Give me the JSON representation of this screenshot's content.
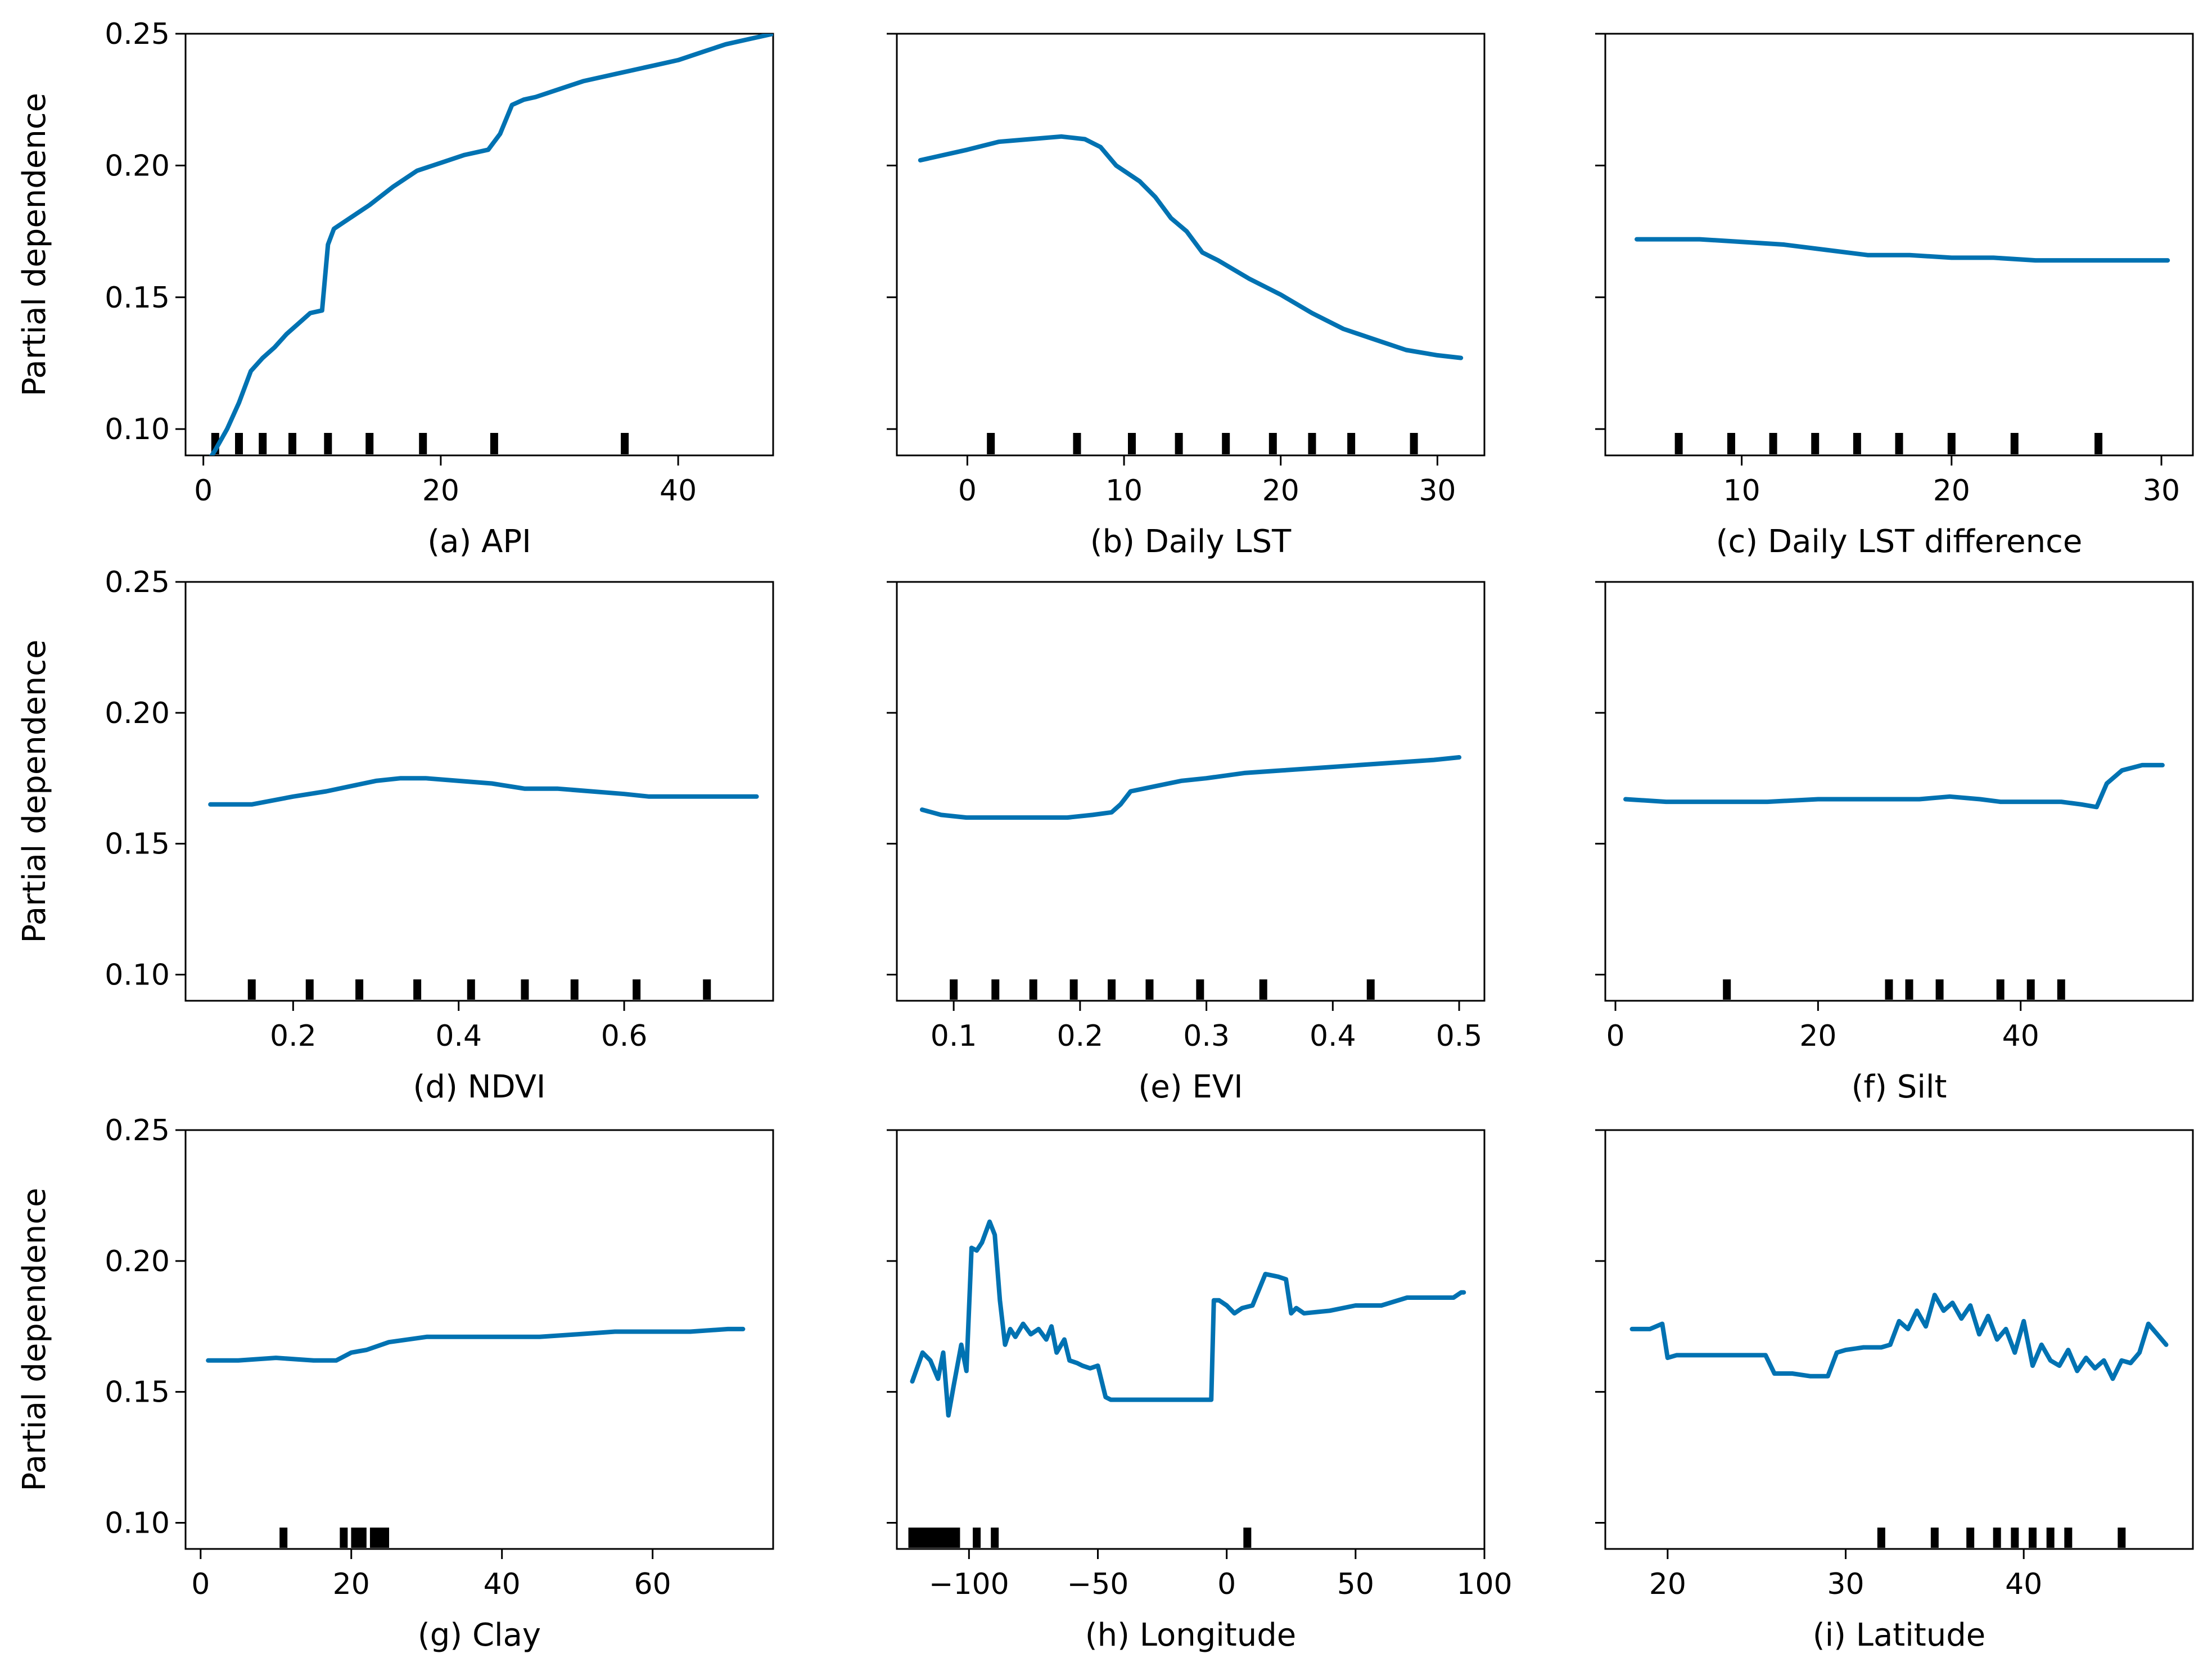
{
  "chart_data": [
    {
      "type": "line",
      "xlabel": "(a) API",
      "ylabel": "Partial dependence",
      "xlim": [
        -1.5,
        48
      ],
      "ylim": [
        0.09,
        0.25
      ],
      "xticks": [
        0,
        20,
        40
      ],
      "yticks": [
        0.1,
        0.15,
        0.2,
        0.25
      ],
      "ytick_labels": [
        "0.10",
        "0.15",
        "0.20",
        "0.25"
      ],
      "show_yticklabels": true,
      "series": [
        {
          "name": "partial dependence",
          "x": [
            0,
            1,
            2,
            3,
            4,
            5,
            6,
            7,
            8,
            9,
            10,
            10.5,
            11,
            12,
            14,
            16,
            18,
            20,
            22,
            24,
            25,
            26,
            27,
            28,
            30,
            32,
            34,
            36,
            38,
            40,
            42,
            44,
            46,
            48
          ],
          "y": [
            0.085,
            0.092,
            0.1,
            0.11,
            0.122,
            0.127,
            0.131,
            0.136,
            0.14,
            0.144,
            0.145,
            0.17,
            0.176,
            0.179,
            0.185,
            0.192,
            0.198,
            0.201,
            0.204,
            0.206,
            0.212,
            0.223,
            0.225,
            0.226,
            0.229,
            0.232,
            0.234,
            0.236,
            0.238,
            0.24,
            0.243,
            0.246,
            0.248,
            0.25
          ]
        }
      ],
      "rug": [
        1,
        3,
        5,
        7.5,
        10.5,
        14,
        18.5,
        24.5,
        35.5
      ]
    },
    {
      "type": "line",
      "xlabel": "(b) Daily LST",
      "ylabel": "",
      "xlim": [
        -4.5,
        33
      ],
      "ylim": [
        0.09,
        0.25
      ],
      "xticks": [
        0,
        10,
        20,
        30
      ],
      "yticks": [
        0.1,
        0.15,
        0.2,
        0.25
      ],
      "ytick_labels": [
        "0.10",
        "0.15",
        "0.20",
        "0.25"
      ],
      "show_yticklabels": false,
      "series": [
        {
          "name": "partial dependence",
          "x": [
            -3,
            0,
            2,
            4,
            6,
            7.5,
            8.5,
            9.5,
            11,
            12,
            13,
            14,
            15,
            16,
            18,
            20,
            22,
            24,
            26,
            28,
            30,
            31.5
          ],
          "y": [
            0.202,
            0.206,
            0.209,
            0.21,
            0.211,
            0.21,
            0.207,
            0.2,
            0.194,
            0.188,
            0.18,
            0.175,
            0.167,
            0.164,
            0.157,
            0.151,
            0.144,
            0.138,
            0.134,
            0.13,
            0.128,
            0.127
          ]
        }
      ],
      "rug": [
        1.5,
        7,
        10.5,
        13.5,
        16.5,
        19.5,
        22,
        24.5,
        28.5
      ]
    },
    {
      "type": "line",
      "xlabel": "(c) Daily LST difference",
      "ylabel": "",
      "xlim": [
        3.5,
        31.5
      ],
      "ylim": [
        0.09,
        0.25
      ],
      "xticks": [
        10,
        20,
        30
      ],
      "yticks": [
        0.1,
        0.15,
        0.2,
        0.25
      ],
      "ytick_labels": [
        "0.10",
        "0.15",
        "0.20",
        "0.25"
      ],
      "show_yticklabels": false,
      "series": [
        {
          "name": "partial dependence",
          "x": [
            5,
            8,
            10,
            12,
            14,
            16,
            18,
            20,
            22,
            24,
            26,
            28,
            30.3
          ],
          "y": [
            0.172,
            0.172,
            0.171,
            0.17,
            0.168,
            0.166,
            0.166,
            0.165,
            0.165,
            0.164,
            0.164,
            0.164,
            0.164
          ]
        }
      ],
      "rug": [
        7,
        9.5,
        11.5,
        13.5,
        15.5,
        17.5,
        20,
        23,
        27
      ]
    },
    {
      "type": "line",
      "xlabel": "(d) NDVI",
      "ylabel": "Partial dependence",
      "xlim": [
        0.07,
        0.78
      ],
      "ylim": [
        0.09,
        0.25
      ],
      "xticks": [
        0.2,
        0.4,
        0.6
      ],
      "yticks": [
        0.1,
        0.15,
        0.2,
        0.25
      ],
      "ytick_labels": [
        "0.10",
        "0.15",
        "0.20",
        "0.25"
      ],
      "show_yticklabels": true,
      "series": [
        {
          "name": "partial dependence",
          "x": [
            0.1,
            0.15,
            0.2,
            0.24,
            0.27,
            0.3,
            0.33,
            0.36,
            0.4,
            0.44,
            0.48,
            0.52,
            0.56,
            0.6,
            0.63,
            0.66,
            0.7,
            0.73,
            0.76
          ],
          "y": [
            0.165,
            0.165,
            0.168,
            0.17,
            0.172,
            0.174,
            0.175,
            0.175,
            0.174,
            0.173,
            0.171,
            0.171,
            0.17,
            0.169,
            0.168,
            0.168,
            0.168,
            0.168,
            0.168
          ]
        }
      ],
      "rug": [
        0.15,
        0.22,
        0.28,
        0.35,
        0.415,
        0.48,
        0.54,
        0.615,
        0.7
      ]
    },
    {
      "type": "line",
      "xlabel": "(e) EVI",
      "ylabel": "",
      "xlim": [
        0.055,
        0.52
      ],
      "ylim": [
        0.09,
        0.25
      ],
      "xticks": [
        0.1,
        0.2,
        0.3,
        0.4,
        0.5
      ],
      "yticks": [
        0.1,
        0.15,
        0.2,
        0.25
      ],
      "ytick_labels": [
        "0.10",
        "0.15",
        "0.20",
        "0.25"
      ],
      "show_yticklabels": false,
      "series": [
        {
          "name": "partial dependence",
          "x": [
            0.075,
            0.09,
            0.11,
            0.13,
            0.15,
            0.17,
            0.19,
            0.21,
            0.225,
            0.232,
            0.24,
            0.26,
            0.28,
            0.3,
            0.33,
            0.36,
            0.39,
            0.42,
            0.45,
            0.48,
            0.5
          ],
          "y": [
            0.163,
            0.161,
            0.16,
            0.16,
            0.16,
            0.16,
            0.16,
            0.161,
            0.162,
            0.165,
            0.17,
            0.172,
            0.174,
            0.175,
            0.177,
            0.178,
            0.179,
            0.18,
            0.181,
            0.182,
            0.183
          ]
        }
      ],
      "rug": [
        0.1,
        0.133,
        0.163,
        0.195,
        0.225,
        0.255,
        0.295,
        0.345,
        0.43
      ]
    },
    {
      "type": "line",
      "xlabel": "(f) Silt",
      "ylabel": "",
      "xlim": [
        -1,
        57
      ],
      "ylim": [
        0.09,
        0.25
      ],
      "xticks": [
        0,
        20,
        40
      ],
      "yticks": [
        0.1,
        0.15,
        0.2,
        0.25
      ],
      "ytick_labels": [
        "0.10",
        "0.15",
        "0.20",
        "0.25"
      ],
      "show_yticklabels": false,
      "series": [
        {
          "name": "partial dependence",
          "x": [
            1,
            5,
            10,
            15,
            20,
            25,
            30,
            33,
            36,
            38,
            40,
            42,
            44,
            46,
            47.5,
            48.5,
            50,
            52,
            54
          ],
          "y": [
            0.167,
            0.166,
            0.166,
            0.166,
            0.167,
            0.167,
            0.167,
            0.168,
            0.167,
            0.166,
            0.166,
            0.166,
            0.166,
            0.165,
            0.164,
            0.173,
            0.178,
            0.18,
            0.18
          ]
        }
      ],
      "rug": [
        11,
        27,
        29,
        32,
        38,
        41,
        44
      ]
    },
    {
      "type": "line",
      "xlabel": "(g) Clay",
      "ylabel": "Partial dependence",
      "xlim": [
        -2,
        76
      ],
      "ylim": [
        0.09,
        0.25
      ],
      "xticks": [
        0,
        20,
        40,
        60
      ],
      "yticks": [
        0.1,
        0.15,
        0.2,
        0.25
      ],
      "ytick_labels": [
        "0.10",
        "0.15",
        "0.20",
        "0.25"
      ],
      "show_yticklabels": true,
      "series": [
        {
          "name": "partial dependence",
          "x": [
            1,
            5,
            10,
            15,
            18,
            20,
            22,
            25,
            30,
            35,
            40,
            45,
            50,
            55,
            60,
            65,
            70,
            72
          ],
          "y": [
            0.162,
            0.162,
            0.163,
            0.162,
            0.162,
            0.165,
            0.166,
            0.169,
            0.171,
            0.171,
            0.171,
            0.171,
            0.172,
            0.173,
            0.173,
            0.173,
            0.174,
            0.174
          ]
        }
      ],
      "rug": [
        11,
        19,
        20.5,
        21.5,
        23,
        23.8,
        24.5
      ]
    },
    {
      "type": "line",
      "xlabel": "(h) Longitude",
      "ylabel": "",
      "xlim": [
        -128,
        100
      ],
      "ylim": [
        0.09,
        0.25
      ],
      "xticks": [
        -100,
        -50,
        0,
        50,
        100
      ],
      "xtick_labels": [
        "−100",
        "−50",
        "0",
        "50",
        "100"
      ],
      "yticks": [
        0.1,
        0.15,
        0.2,
        0.25
      ],
      "ytick_labels": [
        "0.10",
        "0.15",
        "0.20",
        "0.25"
      ],
      "show_yticklabels": false,
      "series": [
        {
          "name": "partial dependence",
          "x": [
            -122,
            -118,
            -115,
            -112,
            -110,
            -108,
            -106,
            -103,
            -101,
            -99,
            -97,
            -95,
            -92,
            -90,
            -88,
            -86,
            -84,
            -82,
            -79,
            -76,
            -73,
            -70,
            -68,
            -66,
            -63,
            -61,
            -58,
            -56,
            -53,
            -50,
            -47,
            -45,
            -40,
            -35,
            -30,
            -25,
            -20,
            -15,
            -10,
            -6,
            -5,
            -3,
            0,
            3,
            6,
            10,
            15,
            20,
            23,
            25,
            27,
            30,
            40,
            50,
            60,
            70,
            80,
            88,
            91,
            92
          ],
          "y": [
            0.154,
            0.165,
            0.162,
            0.155,
            0.165,
            0.141,
            0.152,
            0.168,
            0.158,
            0.205,
            0.204,
            0.207,
            0.215,
            0.21,
            0.185,
            0.168,
            0.174,
            0.171,
            0.176,
            0.172,
            0.174,
            0.17,
            0.175,
            0.165,
            0.17,
            0.162,
            0.161,
            0.16,
            0.159,
            0.16,
            0.148,
            0.147,
            0.147,
            0.147,
            0.147,
            0.147,
            0.147,
            0.147,
            0.147,
            0.147,
            0.185,
            0.185,
            0.183,
            0.18,
            0.182,
            0.183,
            0.195,
            0.194,
            0.193,
            0.18,
            0.182,
            0.18,
            0.181,
            0.183,
            0.183,
            0.186,
            0.186,
            0.186,
            0.188,
            0.188
          ]
        }
      ],
      "rug": [
        -122,
        -120,
        -119,
        -118,
        -117,
        -116,
        -115,
        -114,
        -113,
        -112,
        -111,
        -110,
        -108,
        -107,
        -105,
        -97,
        -90,
        8
      ]
    },
    {
      "type": "line",
      "xlabel": "(i) Latitude",
      "ylabel": "",
      "xlim": [
        16.5,
        49.5
      ],
      "ylim": [
        0.09,
        0.25
      ],
      "xticks": [
        20,
        30,
        40
      ],
      "yticks": [
        0.1,
        0.15,
        0.2,
        0.25
      ],
      "ytick_labels": [
        "0.10",
        "0.15",
        "0.20",
        "0.25"
      ],
      "show_yticklabels": false,
      "series": [
        {
          "name": "partial dependence",
          "x": [
            18,
            19,
            19.7,
            20,
            20.5,
            22,
            24,
            25.5,
            26,
            27,
            28,
            29,
            29.5,
            30,
            31,
            32,
            32.5,
            33,
            33.5,
            34,
            34.5,
            35,
            35.5,
            36,
            36.5,
            37,
            37.5,
            38,
            38.5,
            39,
            39.5,
            40,
            40.5,
            41,
            41.5,
            42,
            42.5,
            43,
            43.5,
            44,
            44.5,
            45,
            45.5,
            46,
            46.5,
            47,
            47.5,
            48
          ],
          "y": [
            0.174,
            0.174,
            0.176,
            0.163,
            0.164,
            0.164,
            0.164,
            0.164,
            0.157,
            0.157,
            0.156,
            0.156,
            0.165,
            0.166,
            0.167,
            0.167,
            0.168,
            0.177,
            0.174,
            0.181,
            0.175,
            0.187,
            0.181,
            0.184,
            0.178,
            0.183,
            0.172,
            0.179,
            0.17,
            0.174,
            0.165,
            0.177,
            0.16,
            0.168,
            0.162,
            0.16,
            0.166,
            0.158,
            0.163,
            0.159,
            0.162,
            0.155,
            0.162,
            0.161,
            0.165,
            0.176,
            0.172,
            0.168
          ]
        }
      ],
      "rug": [
        32,
        35,
        37,
        38.5,
        39.5,
        40.5,
        41.5,
        42.5,
        45.5
      ]
    }
  ]
}
